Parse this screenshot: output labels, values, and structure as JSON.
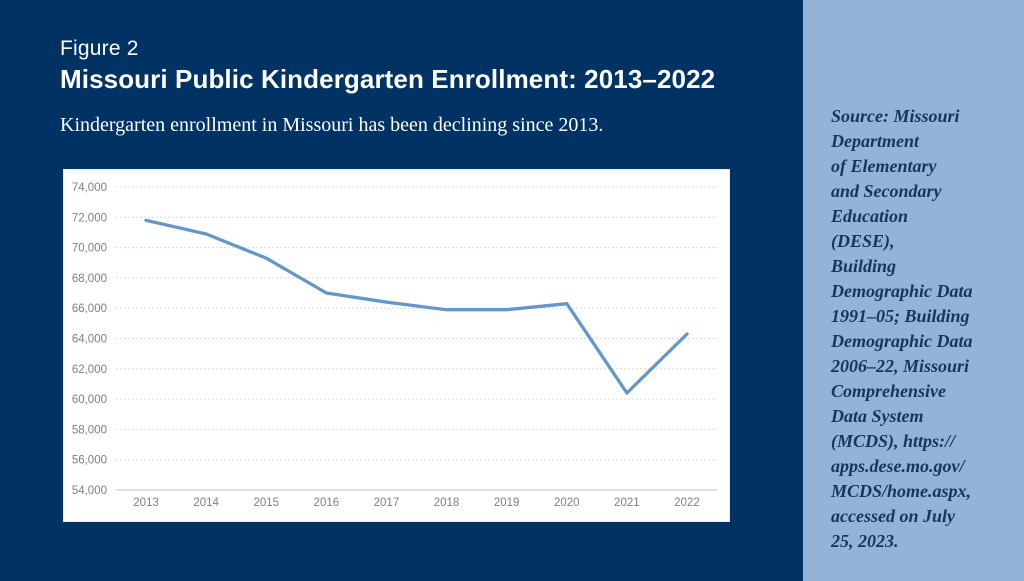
{
  "figure_label": "Figure 2",
  "title": "Missouri Public Kindergarten Enrollment: 2013–2022",
  "subtitle": "Kindergarten enrollment in Missouri has been declining since 2013.",
  "sidebar": {
    "source_text": "Source: Missouri\nDepartment\nof Elementary\nand Secondary\nEducation\n(DESE),\nBuilding\nDemographic Data\n1991–05; Building\nDemographic Data\n2006–22, Missouri\nComprehensive\nData System\n(MCDS), https://\napps.dese.mo.gov/\nMCDS/home.aspx,\naccessed on July\n25, 2023."
  },
  "colors": {
    "background_navy": "#003263",
    "sidebar_blue": "#95b3d7",
    "sidebar_text_navy": "#17365d",
    "panel_white": "#ffffff",
    "line_blue": "#6496c8",
    "axis_label_gray": "#7f7f7f",
    "gridline_gray": "#d9d9d9",
    "axis_line_gray": "#bfbfbf"
  },
  "chart_data": {
    "type": "line",
    "categories": [
      "2013",
      "2014",
      "2015",
      "2016",
      "2017",
      "2018",
      "2019",
      "2020",
      "2021",
      "2022"
    ],
    "values": [
      71800,
      70900,
      69300,
      67000,
      66400,
      65900,
      65900,
      66300,
      60400,
      64300
    ],
    "title": "",
    "xlabel": "",
    "ylabel": "",
    "ylim": [
      54000,
      74000
    ],
    "ytick_step": 2000,
    "ytick_format": "comma",
    "grid": "horizontal-dashed",
    "legend": "none",
    "markers": "none",
    "line_width": 3.3
  }
}
